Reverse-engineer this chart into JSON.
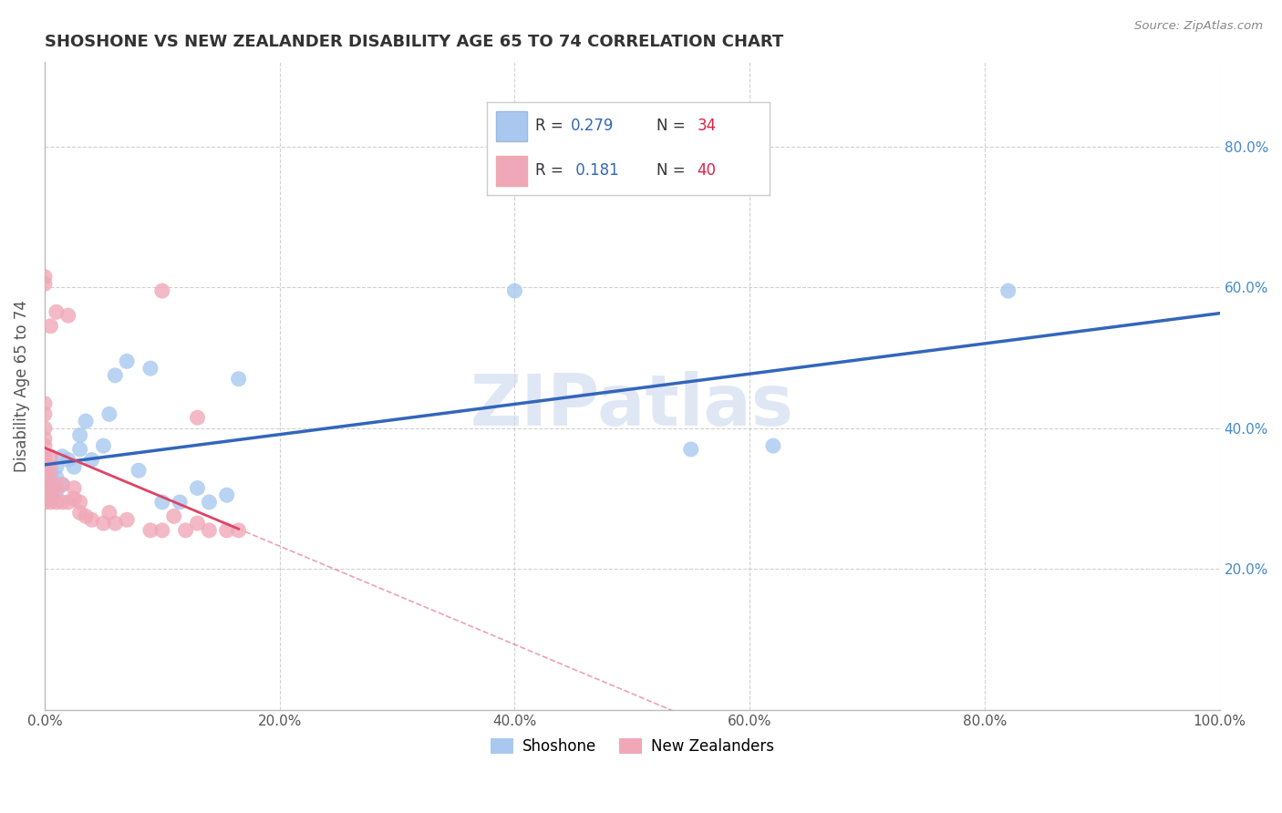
{
  "title": "SHOSHONE VS NEW ZEALANDER DISABILITY AGE 65 TO 74 CORRELATION CHART",
  "source": "Source: ZipAtlas.com",
  "xlabel": "",
  "ylabel": "Disability Age 65 to 74",
  "xlim": [
    0.0,
    1.0
  ],
  "ylim": [
    0.0,
    0.92
  ],
  "xtick_labels": [
    "0.0%",
    "20.0%",
    "40.0%",
    "60.0%",
    "80.0%",
    "100.0%"
  ],
  "xtick_vals": [
    0.0,
    0.2,
    0.4,
    0.6,
    0.8,
    1.0
  ],
  "ytick_labels": [
    "20.0%",
    "40.0%",
    "60.0%",
    "80.0%"
  ],
  "ytick_vals": [
    0.2,
    0.4,
    0.6,
    0.8
  ],
  "watermark": "ZIPatlas",
  "shoshone_R": "0.279",
  "shoshone_N": "34",
  "nz_R": "0.181",
  "nz_N": "40",
  "shoshone_color": "#a8c8f0",
  "nz_color": "#f0a8b8",
  "shoshone_line_color": "#3366bb",
  "nz_line_color": "#dd4466",
  "shoshone_points_x": [
    0.0,
    0.0,
    0.0,
    0.0,
    0.005,
    0.005,
    0.005,
    0.01,
    0.01,
    0.01,
    0.015,
    0.015,
    0.02,
    0.025,
    0.03,
    0.03,
    0.035,
    0.04,
    0.05,
    0.055,
    0.06,
    0.07,
    0.08,
    0.09,
    0.1,
    0.115,
    0.13,
    0.14,
    0.155,
    0.165,
    0.4,
    0.55,
    0.62,
    0.82
  ],
  "shoshone_points_y": [
    0.315,
    0.325,
    0.335,
    0.345,
    0.3,
    0.32,
    0.335,
    0.31,
    0.33,
    0.345,
    0.32,
    0.36,
    0.355,
    0.345,
    0.37,
    0.39,
    0.41,
    0.355,
    0.375,
    0.42,
    0.475,
    0.495,
    0.34,
    0.485,
    0.295,
    0.295,
    0.315,
    0.295,
    0.305,
    0.47,
    0.595,
    0.37,
    0.375,
    0.595
  ],
  "nz_points_x": [
    0.0,
    0.0,
    0.0,
    0.0,
    0.0,
    0.0,
    0.0,
    0.0,
    0.0,
    0.0,
    0.0,
    0.0,
    0.005,
    0.005,
    0.005,
    0.005,
    0.005,
    0.01,
    0.01,
    0.015,
    0.015,
    0.02,
    0.025,
    0.025,
    0.03,
    0.03,
    0.035,
    0.04,
    0.05,
    0.055,
    0.06,
    0.07,
    0.09,
    0.1,
    0.11,
    0.12,
    0.13,
    0.14,
    0.155,
    0.165
  ],
  "nz_points_y": [
    0.295,
    0.31,
    0.315,
    0.325,
    0.335,
    0.345,
    0.36,
    0.375,
    0.385,
    0.4,
    0.42,
    0.435,
    0.295,
    0.31,
    0.33,
    0.345,
    0.36,
    0.295,
    0.315,
    0.295,
    0.32,
    0.295,
    0.3,
    0.315,
    0.28,
    0.295,
    0.275,
    0.27,
    0.265,
    0.28,
    0.265,
    0.27,
    0.255,
    0.255,
    0.275,
    0.255,
    0.265,
    0.255,
    0.255,
    0.255
  ],
  "nz_outlier_x": [
    0.0,
    0.0,
    0.005,
    0.01,
    0.02,
    0.1,
    0.13
  ],
  "nz_outlier_y": [
    0.605,
    0.615,
    0.545,
    0.565,
    0.56,
    0.595,
    0.415
  ],
  "background_color": "#ffffff",
  "grid_color": "#cccccc",
  "title_color": "#333333",
  "axis_label_color": "#555555",
  "tick_color": "#555555",
  "right_tick_color": "#4488cc"
}
